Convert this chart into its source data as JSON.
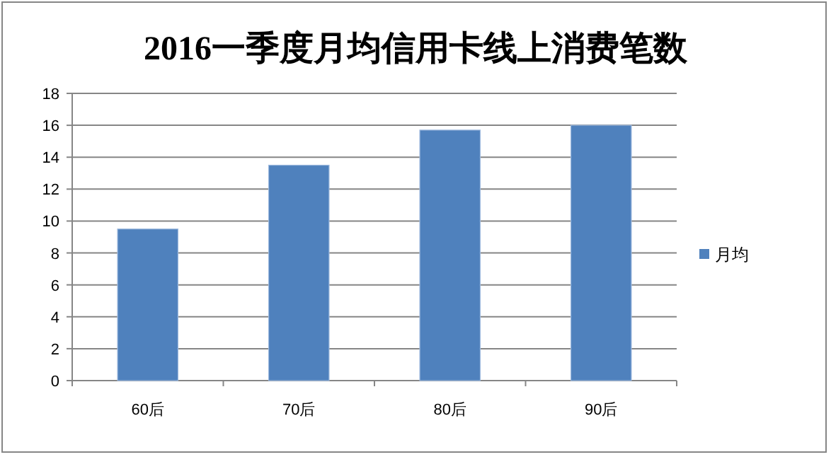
{
  "chart_data": {
    "type": "bar",
    "title": "2016一季度月均信用卡线上消费笔数",
    "categories": [
      "60后",
      "70后",
      "80后",
      "90后"
    ],
    "series": [
      {
        "name": "月均",
        "color": "#4f81bd",
        "values": [
          9.5,
          13.5,
          15.7,
          16.0
        ]
      }
    ],
    "ylim": [
      0,
      18
    ],
    "yticks": [
      0,
      2,
      4,
      6,
      8,
      10,
      12,
      14,
      16,
      18
    ],
    "grid": "y",
    "legend": "right"
  }
}
